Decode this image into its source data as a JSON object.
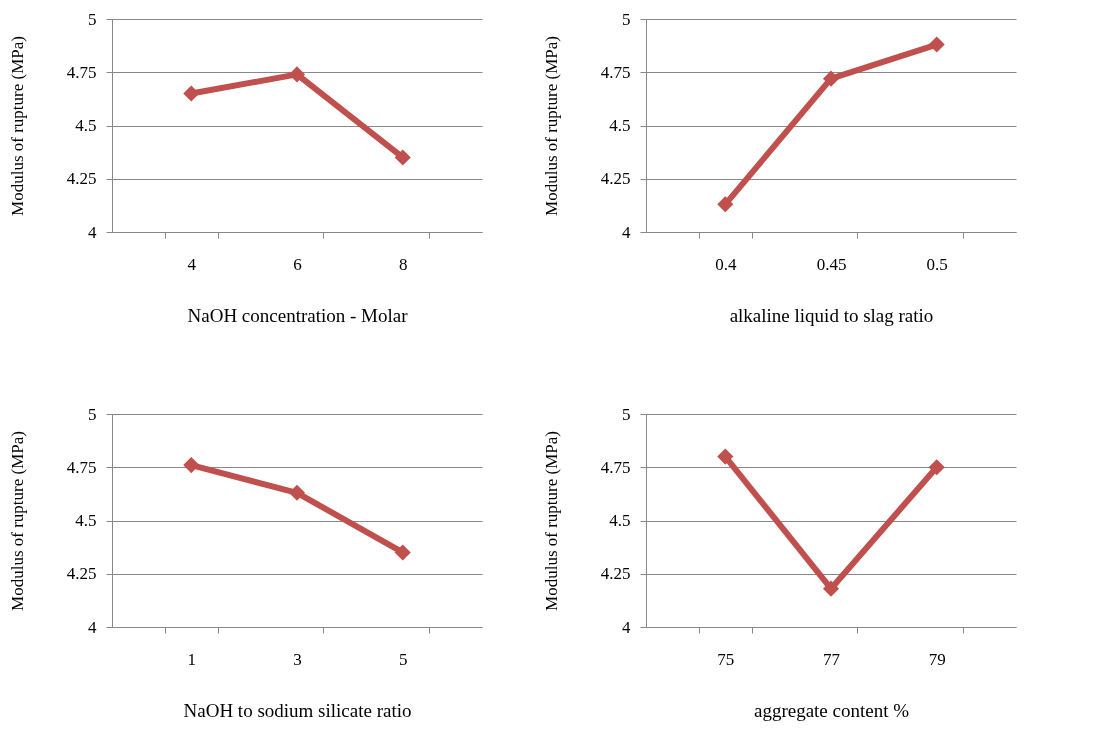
{
  "chart_data": [
    {
      "type": "line",
      "categories": [
        "4",
        "6",
        "8"
      ],
      "xlabel": "NaOH concentration - Molar",
      "ylabel": "Modulus of rupture (MPa)",
      "series": [
        {
          "color": "#c0504d",
          "values": [
            4.65,
            4.74,
            4.35
          ]
        }
      ],
      "ylim": [
        4,
        5
      ],
      "yticks": [
        4,
        4.25,
        4.5,
        4.75,
        5
      ],
      "grid": "y",
      "marker": "diamond"
    },
    {
      "type": "line",
      "categories": [
        "0.4",
        "0.45",
        "0.5"
      ],
      "xlabel": "alkaline liquid to slag ratio",
      "ylabel": "Modulus of rupture (MPa)",
      "series": [
        {
          "color": "#c0504d",
          "values": [
            4.13,
            4.72,
            4.88
          ]
        }
      ],
      "ylim": [
        4,
        5
      ],
      "yticks": [
        4,
        4.25,
        4.5,
        4.75,
        5
      ],
      "grid": "y",
      "marker": "diamond"
    },
    {
      "type": "line",
      "categories": [
        "1",
        "3",
        "5"
      ],
      "xlabel": "NaOH to sodium silicate ratio",
      "ylabel": "Modulus of rupture (MPa)",
      "series": [
        {
          "color": "#c0504d",
          "values": [
            4.76,
            4.63,
            4.35
          ]
        }
      ],
      "ylim": [
        4,
        5
      ],
      "yticks": [
        4,
        4.25,
        4.5,
        4.75,
        5
      ],
      "grid": "y",
      "marker": "diamond"
    },
    {
      "type": "line",
      "categories": [
        "75",
        "77",
        "79"
      ],
      "xlabel": "aggregate content %",
      "ylabel": "Modulus of rupture (MPa)",
      "series": [
        {
          "color": "#c0504d",
          "values": [
            4.8,
            4.18,
            4.75
          ]
        }
      ],
      "ylim": [
        4,
        5
      ],
      "yticks": [
        4,
        4.25,
        4.5,
        4.75,
        5
      ],
      "grid": "y",
      "marker": "diamond"
    }
  ]
}
